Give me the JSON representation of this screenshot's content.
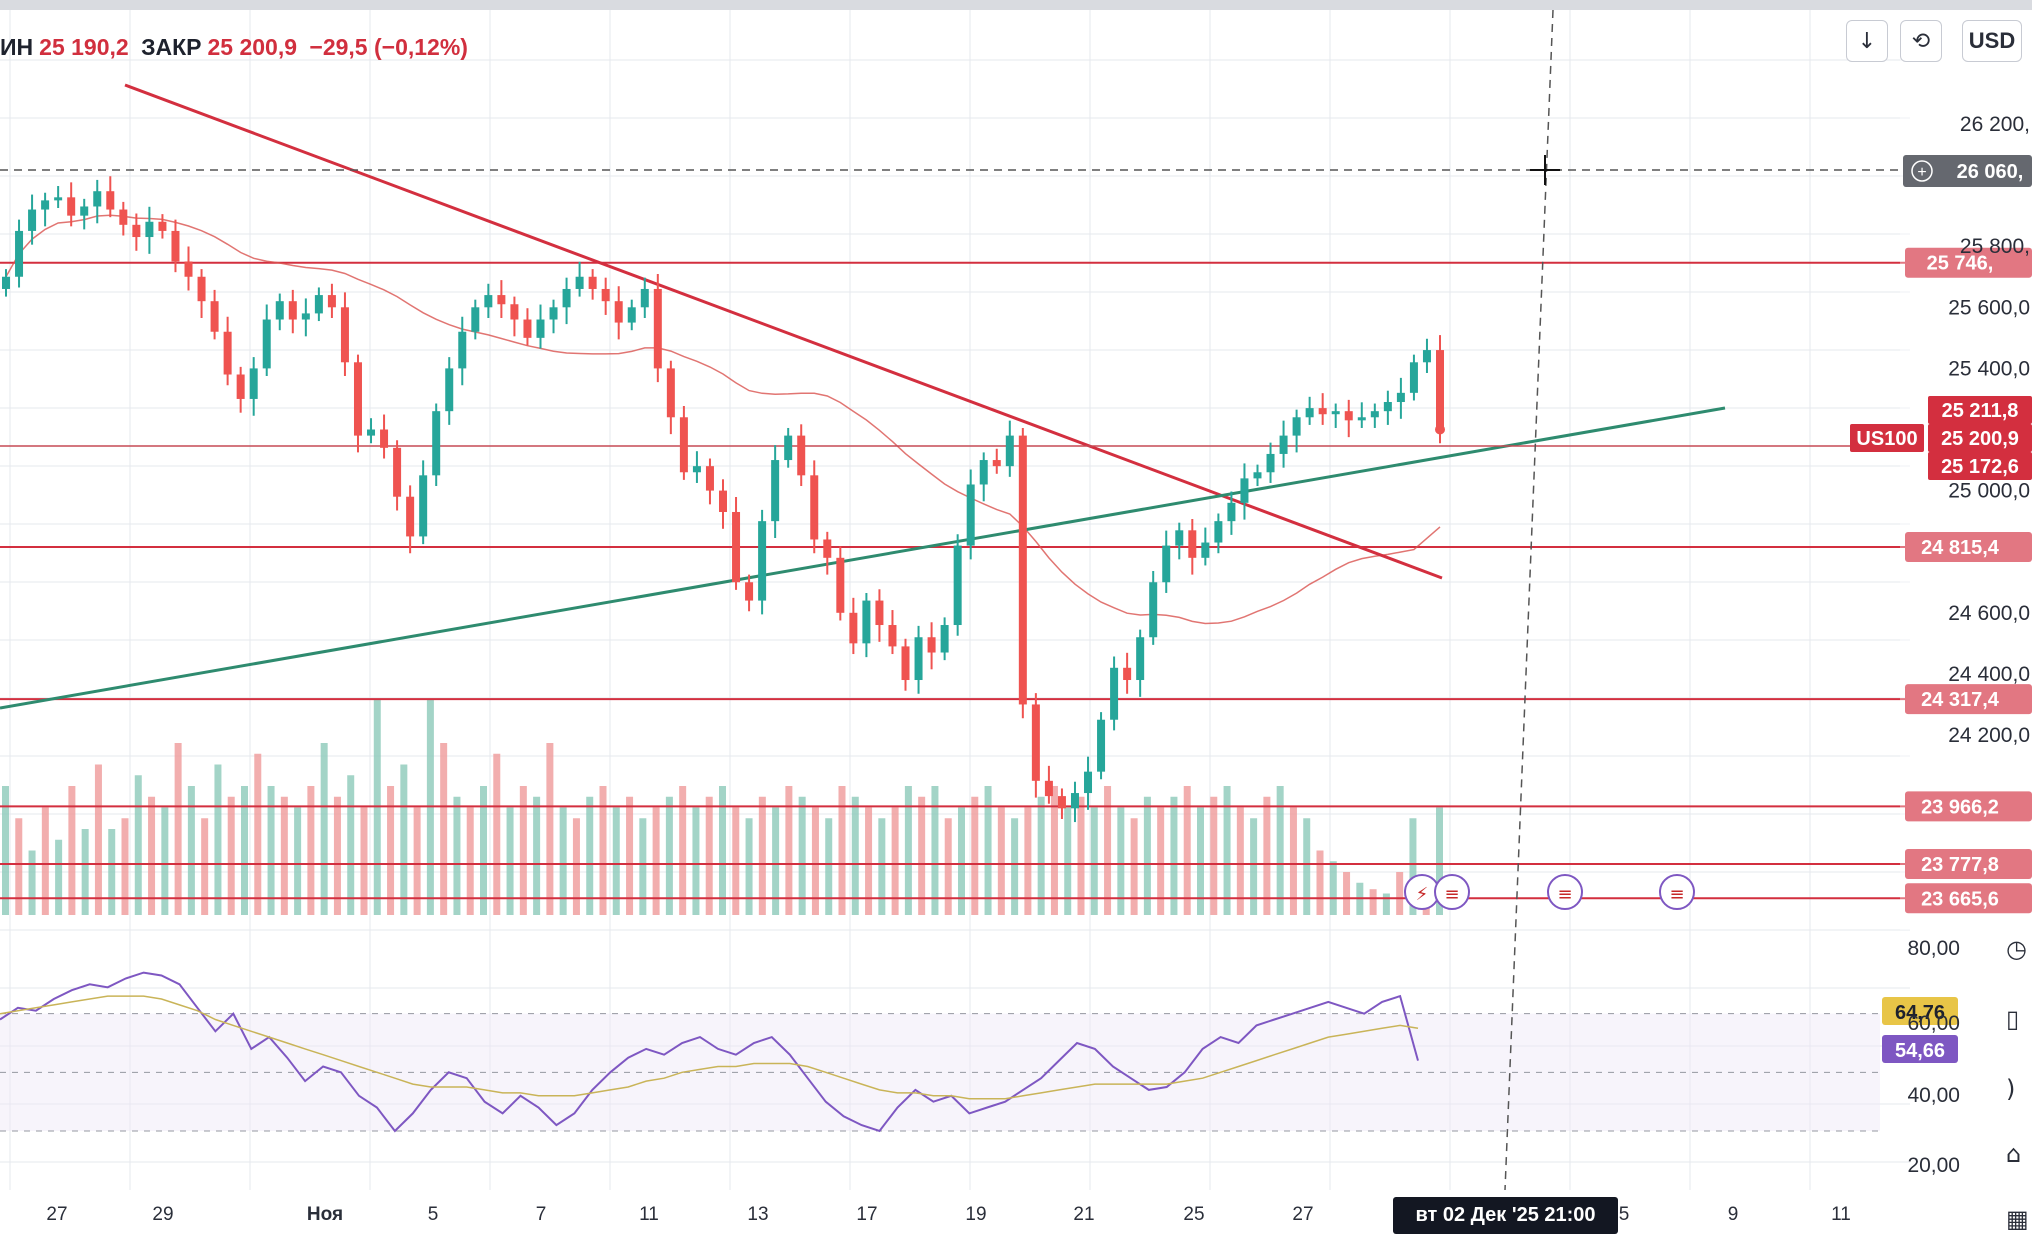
{
  "header": {
    "low_label": "ИН",
    "low_value": "25 190,2",
    "close_label": "ЗАКР",
    "close_value": "25 200,9",
    "change": "−29,5 (−0,12%)"
  },
  "toolbar": {
    "download_icon": "arrow-down-icon",
    "refresh_icon": "refresh-icon",
    "currency": "USD"
  },
  "symbol": "US100",
  "crosshair": {
    "price_label": "26 060,",
    "date_label": "вт 02 Дек '25   21:00"
  },
  "colors": {
    "up": "#26a69a",
    "down": "#ef5350",
    "level_line": "#d32f3f",
    "trend_up": "#2e8b6f",
    "rsi": "#7e57c2",
    "rsi_ma": "#c9b458",
    "rsi_ma_tag": "#e8c547"
  },
  "chart_data": [
    {
      "type": "candlestick",
      "title": "",
      "y_ticks": [
        "26 200,",
        "25 800,",
        "25 600,0",
        "25 400,0",
        "25 000,0",
        "24 600,0",
        "24 400,0",
        "24 200,0"
      ],
      "x_ticks": [
        "27",
        "29",
        "Ноя",
        "5",
        "7",
        "11",
        "13",
        "17",
        "19",
        "21",
        "25",
        "27",
        "5",
        "9",
        "11"
      ],
      "ylim": [
        23600,
        26300
      ],
      "horizontal_levels": [
        25746.0,
        24815.4,
        24317.4,
        23966.2,
        23777.8,
        23665.6
      ],
      "level_labels": [
        "25 746,",
        "24 815,4",
        "24 317,4",
        "23 966,2",
        "23 777,8",
        "23 665,6"
      ],
      "price_tags": [
        {
          "label": "25 211,8",
          "value": 25211.8
        },
        {
          "label": "25 200,9",
          "value": 25200.9
        },
        {
          "label": "25 172,6",
          "value": 25172.6
        }
      ],
      "trendlines": [
        {
          "name": "descending",
          "from": {
            "x": "Oct 27",
            "y": 26030
          },
          "to": {
            "x": "Dec 2",
            "y": 24760
          }
        },
        {
          "name": "ascending",
          "from": {
            "x": "Oct 24",
            "y": 24320
          },
          "to": {
            "x": "Dec 3",
            "y": 25290
          }
        }
      ],
      "close_series": [
        25700,
        25850,
        25920,
        25950,
        25960,
        25900,
        25930,
        25980,
        25920,
        25870,
        25830,
        25880,
        25850,
        25750,
        25700,
        25620,
        25520,
        25380,
        25300,
        25400,
        25560,
        25620,
        25560,
        25580,
        25640,
        25600,
        25420,
        25180,
        25200,
        25140,
        24980,
        24850,
        25050,
        25260,
        25400,
        25520,
        25600,
        25640,
        25610,
        25560,
        25500,
        25560,
        25600,
        25660,
        25700,
        25660,
        25620,
        25550,
        25600,
        25660,
        25400,
        25240,
        25060,
        25080,
        25000,
        24930,
        24700,
        24640,
        24900,
        25100,
        25180,
        25050,
        24840,
        24780,
        24600,
        24500,
        24640,
        24560,
        24490,
        24380,
        24520,
        24470,
        24560,
        24820,
        25020,
        25100,
        25080,
        25180,
        24300,
        24050,
        24000,
        23960,
        24010,
        24080,
        24250,
        24420,
        24380,
        24520,
        24700,
        24820,
        24870,
        24780,
        24830,
        24900,
        24960,
        25040,
        25060,
        25120,
        25180,
        25240,
        25270,
        25250,
        25260,
        25230,
        25240,
        25260,
        25290,
        25320,
        25420,
        25460,
        25200
      ]
    },
    {
      "type": "bar",
      "title": "",
      "series_name": "",
      "values": [
        0.6,
        0.45,
        0.3,
        0.5,
        0.35,
        0.6,
        0.4,
        0.7,
        0.4,
        0.45,
        0.65,
        0.55,
        0.5,
        0.8,
        0.6,
        0.45,
        0.7,
        0.55,
        0.6,
        0.75,
        0.6,
        0.55,
        0.5,
        0.6,
        0.8,
        0.55,
        0.65,
        0.5,
        1.0,
        0.6,
        0.7,
        0.5,
        1.0,
        0.8,
        0.55,
        0.5,
        0.6,
        0.75,
        0.5,
        0.6,
        0.55,
        0.8,
        0.5,
        0.45,
        0.55,
        0.6,
        0.5,
        0.55,
        0.45,
        0.5,
        0.55,
        0.6,
        0.5,
        0.55,
        0.6,
        0.5,
        0.45,
        0.55,
        0.5,
        0.6,
        0.55,
        0.5,
        0.45,
        0.6,
        0.55,
        0.5,
        0.45,
        0.5,
        0.6,
        0.55,
        0.6,
        0.45,
        0.5,
        0.55,
        0.6,
        0.5,
        0.45,
        0.5,
        0.55,
        0.6,
        0.5,
        0.55,
        0.5,
        0.6,
        0.5,
        0.45,
        0.55,
        0.5,
        0.55,
        0.6,
        0.5,
        0.55,
        0.6,
        0.5,
        0.45,
        0.55,
        0.6,
        0.5,
        0.45,
        0.3,
        0.25,
        0.2,
        0.15,
        0.12,
        0.1,
        0.2,
        0.45,
        0.15,
        0.5
      ]
    },
    {
      "type": "line",
      "title": "",
      "y_ticks": [
        "80,00",
        "60,00",
        "40,00",
        "20,00"
      ],
      "ylim": [
        15,
        90
      ],
      "bands": [
        70,
        30
      ],
      "series": [
        {
          "name": "",
          "value_label": "54,66",
          "values": [
            68,
            72,
            71,
            75,
            78,
            80,
            79,
            82,
            84,
            83,
            80,
            72,
            64,
            70,
            58,
            62,
            55,
            47,
            52,
            50,
            42,
            38,
            30,
            36,
            44,
            50,
            48,
            40,
            36,
            42,
            38,
            32,
            36,
            44,
            50,
            55,
            58,
            56,
            60,
            62,
            58,
            56,
            60,
            62,
            56,
            48,
            40,
            35,
            32,
            30,
            38,
            44,
            40,
            42,
            36,
            38,
            40,
            44,
            48,
            54,
            60,
            58,
            52,
            48,
            44,
            45,
            50,
            58,
            62,
            60,
            66,
            68,
            70,
            72,
            74,
            72,
            70,
            74,
            76,
            54
          ]
        },
        {
          "name": "",
          "value_label": "64,76",
          "values": [
            70,
            71,
            72,
            73,
            74,
            75,
            76,
            76,
            76,
            75,
            73,
            71,
            68,
            66,
            64,
            62,
            60,
            58,
            56,
            54,
            52,
            50,
            48,
            46,
            45,
            45,
            45,
            44,
            43,
            43,
            42,
            42,
            42,
            43,
            44,
            45,
            47,
            48,
            50,
            51,
            52,
            52,
            53,
            53,
            53,
            52,
            50,
            48,
            46,
            44,
            43,
            43,
            42,
            42,
            41,
            41,
            41,
            42,
            43,
            44,
            45,
            46,
            46,
            46,
            46,
            46,
            47,
            48,
            50,
            52,
            54,
            56,
            58,
            60,
            62,
            63,
            64,
            65,
            66,
            65
          ]
        }
      ]
    }
  ]
}
